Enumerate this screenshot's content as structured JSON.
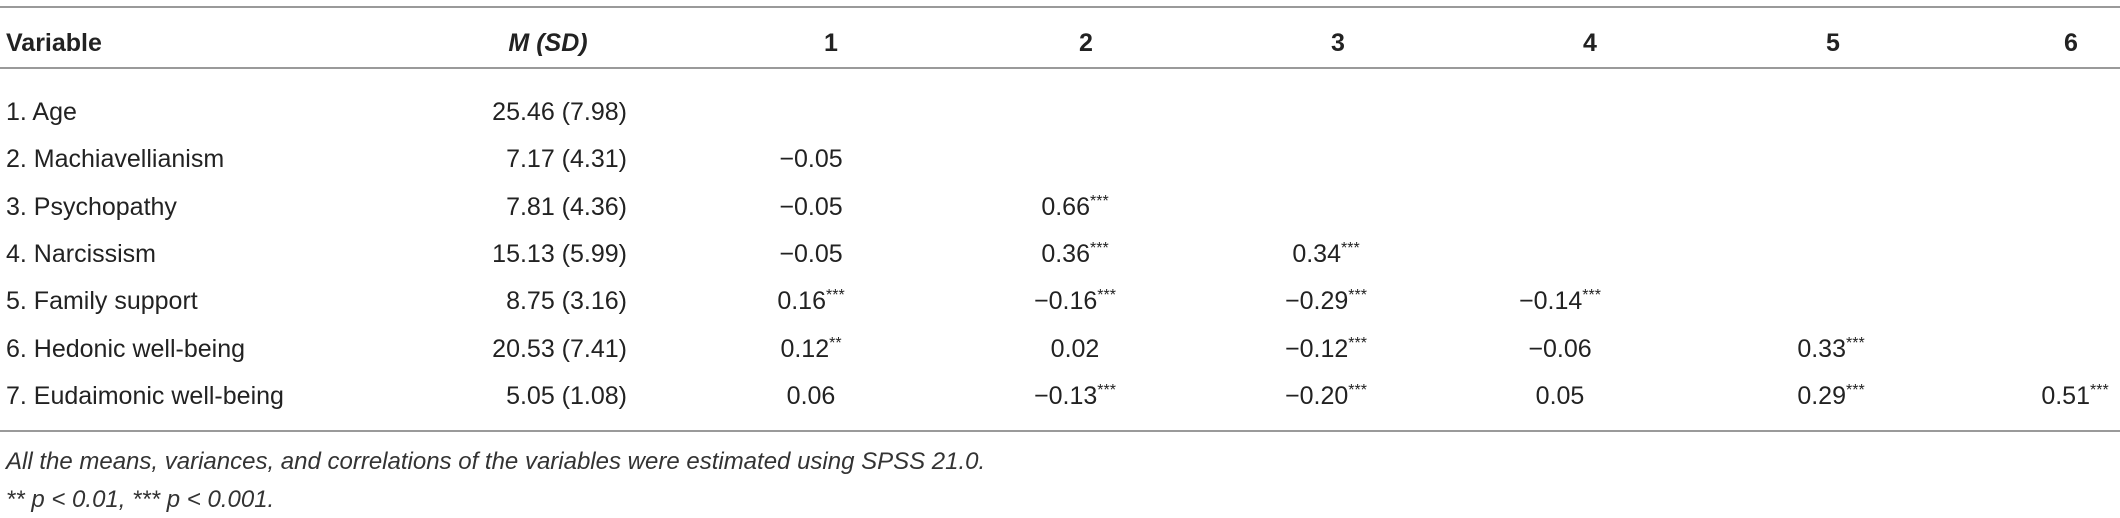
{
  "table": {
    "header": [
      "Variable",
      "M (SD)",
      "1",
      "2",
      "3",
      "4",
      "5",
      "6"
    ],
    "rows": [
      {
        "variable": "1. Age",
        "msd": "25.46 (7.98)",
        "correlations": []
      },
      {
        "variable": "2. Machiavellianism",
        "msd": "7.17 (4.31)",
        "correlations": [
          {
            "value": "−0.05",
            "sig": ""
          }
        ]
      },
      {
        "variable": "3. Psychopathy",
        "msd": "7.81 (4.36)",
        "correlations": [
          {
            "value": "−0.05",
            "sig": ""
          },
          {
            "value": "0.66",
            "sig": "***"
          }
        ]
      },
      {
        "variable": "4. Narcissism",
        "msd": "15.13 (5.99)",
        "correlations": [
          {
            "value": "−0.05",
            "sig": ""
          },
          {
            "value": "0.36",
            "sig": "***"
          },
          {
            "value": "0.34",
            "sig": "***"
          }
        ]
      },
      {
        "variable": "5. Family support",
        "msd": "8.75 (3.16)",
        "correlations": [
          {
            "value": "0.16",
            "sig": "***"
          },
          {
            "value": "−0.16",
            "sig": "***"
          },
          {
            "value": "−0.29",
            "sig": "***"
          },
          {
            "value": "−0.14",
            "sig": "***"
          }
        ]
      },
      {
        "variable": "6. Hedonic well-being",
        "msd": "20.53 (7.41)",
        "correlations": [
          {
            "value": "0.12",
            "sig": "**"
          },
          {
            "value": "0.02",
            "sig": ""
          },
          {
            "value": "−0.12",
            "sig": "***"
          },
          {
            "value": "−0.06",
            "sig": ""
          },
          {
            "value": "0.33",
            "sig": "***"
          }
        ]
      },
      {
        "variable": "7. Eudaimonic well-being",
        "msd": "5.05 (1.08)",
        "correlations": [
          {
            "value": "0.06",
            "sig": ""
          },
          {
            "value": "−0.13",
            "sig": "***"
          },
          {
            "value": "−0.20",
            "sig": "***"
          },
          {
            "value": "0.05",
            "sig": ""
          },
          {
            "value": "0.29",
            "sig": "***"
          },
          {
            "value": "0.51",
            "sig": "***"
          }
        ]
      }
    ]
  },
  "notes": [
    "All the means, variances, and correlations of the variables were estimated using SPSS 21.0.",
    "** p < 0.01, *** p < 0.001."
  ]
}
